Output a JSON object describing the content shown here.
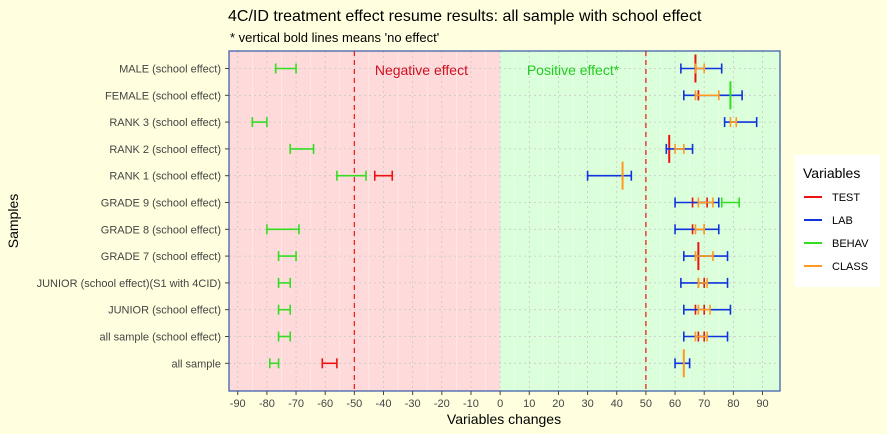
{
  "chart_data": {
    "type": "errorbar",
    "title": "4C/ID treatment effect resume results: all sample with school effect",
    "subtitle": "* vertical bold lines means 'no effect'",
    "xlabel": "Variables changes",
    "ylabel": "Samples",
    "xlim": [
      -93,
      96
    ],
    "xticks": [
      -90,
      -80,
      -70,
      -60,
      -50,
      -40,
      -30,
      -20,
      -10,
      0,
      10,
      20,
      30,
      40,
      50,
      60,
      70,
      80,
      90
    ],
    "xtick_labels": [
      "-90",
      "-80",
      "-70",
      "-60",
      "-50",
      "-40",
      "-30",
      "-20",
      "-10",
      "0",
      "10",
      "20",
      "30",
      "40",
      "50",
      "60",
      "70",
      "80",
      "90"
    ],
    "reference_lines": [
      -50,
      50
    ],
    "regions": [
      {
        "label": "Negative effect",
        "from": -93,
        "to": 0,
        "color": "#ffdada"
      },
      {
        "label": "Positive effect*",
        "from": 0,
        "to": 96,
        "color": "#daffda"
      }
    ],
    "grid": true,
    "legend": {
      "title": "Variables",
      "position": "right"
    },
    "categories": [
      "MALE (school effect)",
      "FEMALE (school effect)",
      "RANK 3 (school effect)",
      "RANK 2 (school effect)",
      "RANK 1 (school effect)",
      "GRADE 9 (school effect)",
      "GRADE 8 (school effect)",
      "GRADE 7 (school effect)",
      "JUNIOR (school effect)(S1 with 4CID)",
      "JUNIOR (school effect)",
      "all sample (school effect)",
      "all sample"
    ],
    "series": [
      {
        "name": "TEST",
        "color": "#ee1111",
        "intervals": [
          [
            67,
            67,
            true
          ],
          [
            68,
            68,
            false
          ],
          null,
          [
            58,
            58,
            true
          ],
          [
            -43,
            -37,
            false
          ],
          [
            66,
            71,
            false
          ],
          [
            66,
            70,
            false
          ],
          [
            68,
            68,
            true
          ],
          [
            68,
            70,
            false
          ],
          [
            67,
            70,
            false
          ],
          [
            68,
            70,
            false
          ],
          [
            -61,
            -56,
            false
          ]
        ]
      },
      {
        "name": "LAB",
        "color": "#1133dd",
        "intervals": [
          [
            62,
            76,
            false
          ],
          [
            63,
            83,
            false
          ],
          [
            77,
            88,
            false
          ],
          [
            57,
            66,
            false
          ],
          [
            30,
            45,
            false
          ],
          [
            60,
            75,
            false
          ],
          [
            60,
            75,
            false
          ],
          [
            63,
            78,
            false
          ],
          [
            62,
            78,
            false
          ],
          [
            63,
            79,
            false
          ],
          [
            63,
            78,
            false
          ],
          [
            60,
            65,
            false
          ]
        ]
      },
      {
        "name": "BEHAV",
        "color": "#33dd22",
        "intervals": [
          [
            -77,
            -70,
            false
          ],
          [
            79,
            79,
            true
          ],
          [
            -85,
            -80,
            false
          ],
          [
            -72,
            -64,
            false
          ],
          [
            -56,
            -46,
            false
          ],
          [
            76,
            82,
            false
          ],
          [
            -80,
            -69,
            false
          ],
          [
            -76,
            -70,
            false
          ],
          [
            -76,
            -72,
            false
          ],
          [
            -76,
            -72,
            false
          ],
          [
            -76,
            -72,
            false
          ],
          [
            -79,
            -76,
            false
          ]
        ]
      },
      {
        "name": "CLASS",
        "color": "#ff9922",
        "intervals": [
          [
            67,
            70,
            false
          ],
          [
            67,
            75,
            false
          ],
          [
            79,
            81,
            false
          ],
          [
            60,
            63,
            false
          ],
          [
            42,
            42,
            true
          ],
          [
            68,
            73,
            false
          ],
          [
            67,
            70,
            false
          ],
          [
            67,
            73,
            false
          ],
          [
            68,
            71,
            false
          ],
          [
            68,
            72,
            false
          ],
          [
            67,
            71,
            false
          ],
          [
            63,
            63,
            true
          ]
        ]
      }
    ]
  }
}
